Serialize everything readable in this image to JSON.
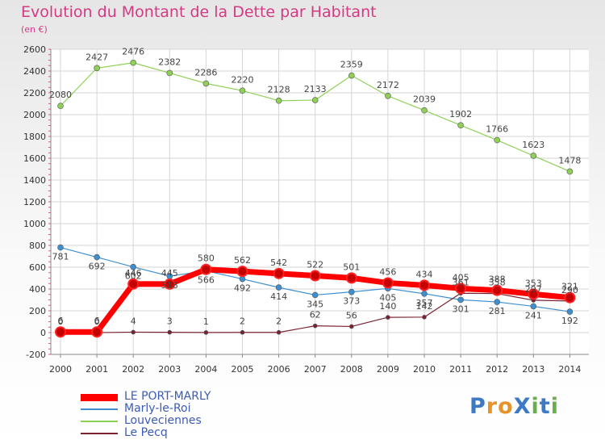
{
  "page": {
    "title": "Evolution du Montant de la Dette par Habitant",
    "subtitle": "(en €)",
    "logo": {
      "text": "ProXiti",
      "colors": [
        "#3d7ac4",
        "#e89327",
        "#e89327",
        "#3d7ac4",
        "#67b04b",
        "#3d7ac4",
        "#67b04b"
      ]
    }
  },
  "chart_data": {
    "type": "line",
    "title": "Evolution du Montant de la Dette par Habitant",
    "subtitle": "(en €)",
    "x": [
      2000,
      2001,
      2002,
      2003,
      2004,
      2005,
      2006,
      2007,
      2008,
      2009,
      2010,
      2011,
      2012,
      2013,
      2014
    ],
    "ylim": [
      -200,
      2600
    ],
    "yticks": [
      -200,
      0,
      200,
      400,
      600,
      800,
      1000,
      1200,
      1400,
      1600,
      1800,
      2000,
      2200,
      2400,
      2600
    ],
    "grid": true,
    "legend_position": "bottom-left",
    "series": [
      {
        "name": "LE PORT-MARLY",
        "color": "#ff0000",
        "values": [
          6,
          6,
          446,
          445,
          580,
          562,
          542,
          522,
          501,
          456,
          434,
          405,
          388,
          353,
          321
        ]
      },
      {
        "name": "Marly-le-Roi",
        "color": "#3d8fd0",
        "values": [
          781,
          692,
          602,
          518,
          566,
          492,
          414,
          345,
          373,
          405,
          357,
          301,
          281,
          241,
          192
        ]
      },
      {
        "name": "Louveciennes",
        "color": "#8fd157",
        "values": [
          2080,
          2427,
          2476,
          2382,
          2286,
          2220,
          2128,
          2133,
          2359,
          2172,
          2039,
          1902,
          1766,
          1623,
          1478
        ]
      },
      {
        "name": "Le Pecq",
        "color": "#7a2232",
        "values": [
          0,
          0,
          4,
          3,
          1,
          2,
          2,
          62,
          56,
          140,
          142,
          361,
          358,
          297,
          290
        ]
      }
    ]
  }
}
